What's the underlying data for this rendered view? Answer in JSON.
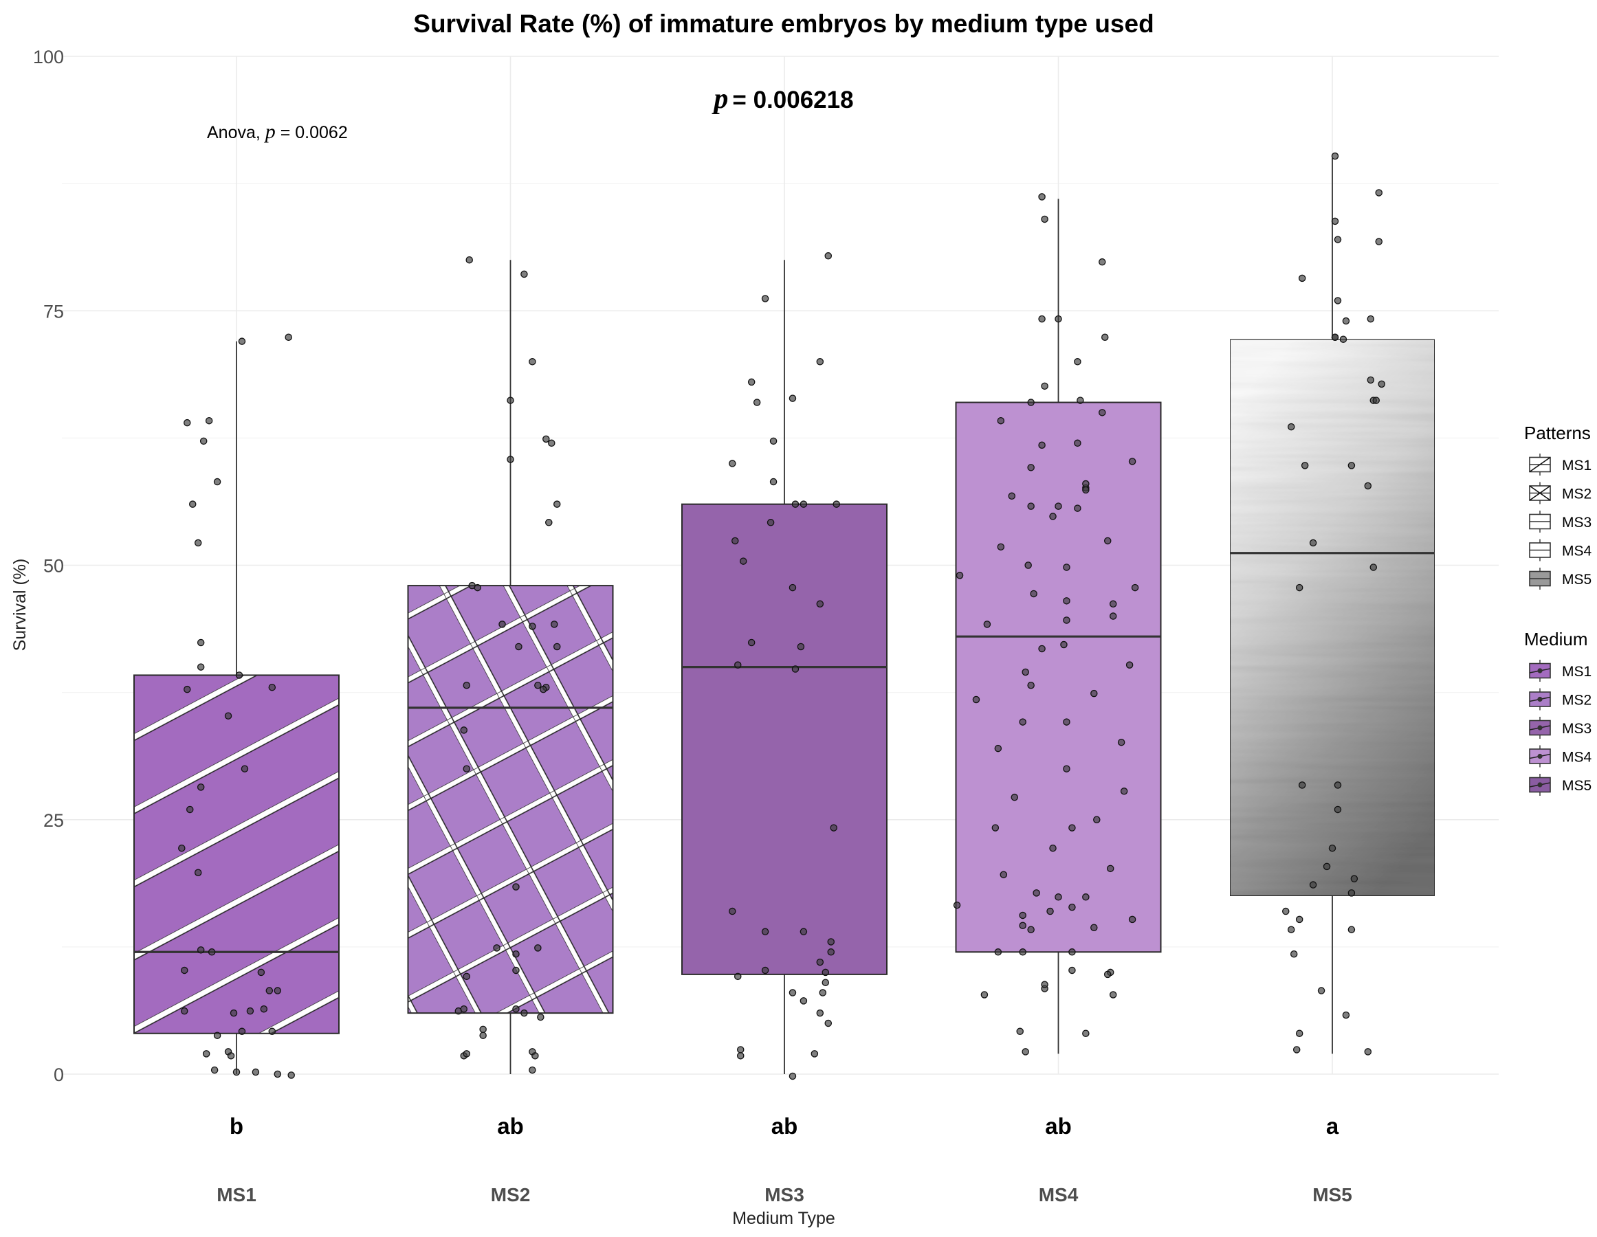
{
  "chart_data": {
    "type": "box",
    "title": "Survival Rate (%) of immature embryos by medium type used",
    "subtitle_prefix": "p",
    "subtitle_value": "= 0.006218",
    "annotation_prefix": "Anova, ",
    "annotation_italic": "p",
    "annotation_value": " = 0.0062",
    "xlabel": "Medium Type",
    "ylabel": "Survival (%)",
    "ylim": [
      0,
      100
    ],
    "yticks": [
      0,
      25,
      50,
      75,
      100
    ],
    "categories": [
      "MS1",
      "MS2",
      "MS3",
      "MS4",
      "MS5"
    ],
    "letters": [
      "b",
      "ab",
      "ab",
      "ab",
      "a"
    ],
    "boxes": [
      {
        "name": "MS1",
        "whisker_low": 0,
        "q1": 4,
        "median": 12,
        "q3": 39.2,
        "whisker_high": 72,
        "fill": "#a36bbf",
        "pattern": "stripe"
      },
      {
        "name": "MS2",
        "whisker_low": 0,
        "q1": 6,
        "median": 36,
        "q3": 48,
        "whisker_high": 80,
        "fill": "#ab7ec8",
        "pattern": "crosshatch"
      },
      {
        "name": "MS3",
        "whisker_low": 0,
        "q1": 9.8,
        "median": 40,
        "q3": 56,
        "whisker_high": 80,
        "fill": "#9564ab",
        "pattern": "none"
      },
      {
        "name": "MS4",
        "whisker_low": 2,
        "q1": 12,
        "median": 43,
        "q3": 66,
        "whisker_high": 86,
        "fill": "#bd91d1",
        "pattern": "none"
      },
      {
        "name": "MS5",
        "whisker_low": 2,
        "q1": 17.5,
        "median": 51.2,
        "q3": 72.2,
        "whisker_high": 90,
        "fill": "#9a9a9a",
        "pattern": "gradient"
      }
    ],
    "points": [
      [
        [
          -0.18,
          64
        ],
        [
          -0.12,
          62.2
        ],
        [
          -0.1,
          64.2
        ],
        [
          -0.16,
          56
        ],
        [
          -0.14,
          52.2
        ],
        [
          -0.07,
          58.2
        ],
        [
          0.02,
          72
        ],
        [
          0.19,
          72.4
        ],
        [
          -0.13,
          42.4
        ],
        [
          -0.13,
          40
        ],
        [
          0.01,
          39.2
        ],
        [
          -0.18,
          37.8
        ],
        [
          0.13,
          38
        ],
        [
          -0.03,
          35.2
        ],
        [
          0.03,
          30
        ],
        [
          -0.13,
          28.2
        ],
        [
          -0.17,
          26
        ],
        [
          -0.2,
          22.2
        ],
        [
          -0.14,
          19.8
        ],
        [
          -0.13,
          12.2
        ],
        [
          -0.09,
          12
        ],
        [
          -0.19,
          10.2
        ],
        [
          0.09,
          10
        ],
        [
          0.12,
          8.2
        ],
        [
          0.15,
          8.2
        ],
        [
          -0.19,
          6.2
        ],
        [
          -0.01,
          6
        ],
        [
          0.05,
          6.2
        ],
        [
          0.1,
          6.4
        ],
        [
          0.02,
          4.2
        ],
        [
          0.13,
          4.2
        ],
        [
          -0.07,
          3.8
        ],
        [
          -0.11,
          2
        ],
        [
          -0.03,
          2.2
        ],
        [
          -0.02,
          1.8
        ],
        [
          0.0,
          0.2
        ],
        [
          -0.08,
          0.4
        ],
        [
          0.07,
          0.2
        ],
        [
          0.15,
          0
        ],
        [
          0.2,
          -0.1
        ]
      ],
      [
        [
          -0.15,
          80
        ],
        [
          0.05,
          78.6
        ],
        [
          0.08,
          70
        ],
        [
          0.0,
          66.2
        ],
        [
          0.0,
          60.4
        ],
        [
          0.13,
          62.4
        ],
        [
          0.15,
          62
        ],
        [
          0.17,
          56
        ],
        [
          0.14,
          54.2
        ],
        [
          -0.14,
          48
        ],
        [
          -0.12,
          47.8
        ],
        [
          -0.03,
          44.2
        ],
        [
          0.08,
          44
        ],
        [
          0.16,
          44.2
        ],
        [
          0.17,
          42
        ],
        [
          0.03,
          42
        ],
        [
          -0.16,
          38.2
        ],
        [
          0.1,
          38.2
        ],
        [
          0.13,
          38
        ],
        [
          0.12,
          37.8
        ],
        [
          -0.17,
          33.8
        ],
        [
          -0.16,
          30
        ],
        [
          0.02,
          18.4
        ],
        [
          -0.05,
          12.4
        ],
        [
          0.02,
          11.8
        ],
        [
          0.1,
          12.4
        ],
        [
          0.02,
          10.2
        ],
        [
          -0.16,
          9.6
        ],
        [
          -0.19,
          6.2
        ],
        [
          -0.17,
          6.4
        ],
        [
          0.02,
          6.4
        ],
        [
          0.05,
          6
        ],
        [
          0.11,
          5.6
        ],
        [
          -0.1,
          4.4
        ],
        [
          -0.1,
          3.8
        ],
        [
          -0.17,
          1.8
        ],
        [
          -0.16,
          2
        ],
        [
          0.08,
          2.2
        ],
        [
          0.09,
          1.8
        ],
        [
          0.08,
          0.4
        ]
      ],
      [
        [
          -0.07,
          76.2
        ],
        [
          0.16,
          80.4
        ],
        [
          0.13,
          70
        ],
        [
          -0.12,
          68
        ],
        [
          -0.1,
          66
        ],
        [
          0.03,
          66.4
        ],
        [
          -0.04,
          62.2
        ],
        [
          -0.04,
          58.2
        ],
        [
          -0.19,
          60
        ],
        [
          -0.05,
          54.2
        ],
        [
          0.04,
          56
        ],
        [
          0.07,
          56
        ],
        [
          0.19,
          56
        ],
        [
          -0.18,
          52.4
        ],
        [
          -0.15,
          50.4
        ],
        [
          0.03,
          47.8
        ],
        [
          0.13,
          46.2
        ],
        [
          -0.17,
          40.2
        ],
        [
          -0.12,
          42.4
        ],
        [
          0.06,
          42
        ],
        [
          0.04,
          39.8
        ],
        [
          0.18,
          24.2
        ],
        [
          -0.19,
          16
        ],
        [
          -0.07,
          14
        ],
        [
          0.07,
          14
        ],
        [
          0.17,
          13
        ],
        [
          0.17,
          12
        ],
        [
          0.13,
          11
        ],
        [
          0.15,
          10
        ],
        [
          -0.07,
          10.2
        ],
        [
          -0.17,
          9.6
        ],
        [
          0.15,
          9
        ],
        [
          0.03,
          8
        ],
        [
          0.14,
          8
        ],
        [
          0.07,
          7.2
        ],
        [
          0.13,
          6
        ],
        [
          0.16,
          5
        ],
        [
          -0.16,
          2.4
        ],
        [
          0.11,
          2
        ],
        [
          -0.16,
          1.8
        ],
        [
          0.03,
          -0.2
        ]
      ],
      [
        [
          -0.06,
          86.2
        ],
        [
          -0.05,
          84
        ],
        [
          0.16,
          79.8
        ],
        [
          -0.06,
          74.2
        ],
        [
          0.0,
          74.2
        ],
        [
          0.17,
          72.4
        ],
        [
          0.07,
          70
        ],
        [
          -0.05,
          67.6
        ],
        [
          0.08,
          66.2
        ],
        [
          -0.1,
          66
        ],
        [
          -0.21,
          64.2
        ],
        [
          0.16,
          65
        ],
        [
          0.27,
          60.2
        ],
        [
          -0.06,
          61.8
        ],
        [
          0.07,
          62
        ],
        [
          -0.1,
          59.6
        ],
        [
          0.1,
          57.6
        ],
        [
          0.1,
          58
        ],
        [
          -0.1,
          55.8
        ],
        [
          0.0,
          55.8
        ],
        [
          0.07,
          55.6
        ],
        [
          0.28,
          47.8
        ],
        [
          0.1,
          57.4
        ],
        [
          0.18,
          52.4
        ],
        [
          -0.36,
          49
        ],
        [
          -0.17,
          56.8
        ],
        [
          -0.11,
          50
        ],
        [
          -0.21,
          51.8
        ],
        [
          -0.26,
          44.2
        ],
        [
          -0.02,
          54.8
        ],
        [
          0.03,
          49.8
        ],
        [
          -0.09,
          47.2
        ],
        [
          0.03,
          46.5
        ],
        [
          0.2,
          46.2
        ],
        [
          0.2,
          45
        ],
        [
          0.03,
          44.6
        ],
        [
          0.26,
          40.2
        ],
        [
          -0.06,
          41.8
        ],
        [
          0.02,
          42.2
        ],
        [
          -0.12,
          39.5
        ],
        [
          -0.1,
          38.2
        ],
        [
          -0.3,
          36.8
        ],
        [
          0.13,
          37.4
        ],
        [
          -0.13,
          34.6
        ],
        [
          0.03,
          34.6
        ],
        [
          -0.22,
          32
        ],
        [
          0.23,
          32.6
        ],
        [
          0.03,
          30
        ],
        [
          0.05,
          24.2
        ],
        [
          0.24,
          27.8
        ],
        [
          -0.16,
          27.2
        ],
        [
          -0.23,
          24.2
        ],
        [
          0.14,
          25
        ],
        [
          -0.02,
          22.2
        ],
        [
          0.19,
          20.2
        ],
        [
          -0.2,
          19.6
        ],
        [
          0.0,
          17.4
        ],
        [
          0.1,
          17.4
        ],
        [
          -0.08,
          17.8
        ],
        [
          -0.13,
          15.6
        ],
        [
          -0.13,
          14.6
        ],
        [
          -0.1,
          14.2
        ],
        [
          -0.03,
          16
        ],
        [
          0.05,
          16.4
        ],
        [
          0.13,
          14.4
        ],
        [
          0.27,
          15.2
        ],
        [
          -0.22,
          12
        ],
        [
          -0.13,
          12
        ],
        [
          0.05,
          12
        ],
        [
          0.19,
          10
        ],
        [
          0.18,
          9.8
        ],
        [
          -0.05,
          8.4
        ],
        [
          0.05,
          10.2
        ],
        [
          -0.27,
          7.8
        ],
        [
          0.2,
          7.8
        ],
        [
          -0.05,
          8.8
        ],
        [
          -0.14,
          4.2
        ],
        [
          0.1,
          4
        ],
        [
          -0.12,
          2.2
        ],
        [
          -0.37,
          16.6
        ]
      ],
      [
        [
          0.01,
          90.2
        ],
        [
          0.17,
          86.6
        ],
        [
          0.01,
          83.8
        ],
        [
          0.02,
          82
        ],
        [
          0.17,
          81.8
        ],
        [
          -0.11,
          78.2
        ],
        [
          0.02,
          76
        ],
        [
          0.05,
          74
        ],
        [
          0.14,
          74.2
        ],
        [
          0.01,
          72.4
        ],
        [
          0.04,
          72.2
        ],
        [
          0.01,
          72.4
        ],
        [
          0.14,
          68.2
        ],
        [
          0.15,
          66.2
        ],
        [
          0.18,
          67.8
        ],
        [
          0.16,
          66.2
        ],
        [
          -0.15,
          63.6
        ],
        [
          -0.1,
          59.8
        ],
        [
          0.07,
          59.8
        ],
        [
          0.13,
          57.8
        ],
        [
          -0.07,
          52.2
        ],
        [
          0.15,
          49.8
        ],
        [
          -0.12,
          47.8
        ],
        [
          -0.11,
          28.4
        ],
        [
          0.02,
          28.4
        ],
        [
          0.02,
          26
        ],
        [
          0.0,
          22.2
        ],
        [
          -0.07,
          18.6
        ],
        [
          -0.02,
          20.4
        ],
        [
          0.08,
          19.2
        ],
        [
          0.07,
          17.8
        ],
        [
          -0.17,
          16
        ],
        [
          -0.12,
          15.2
        ],
        [
          -0.15,
          14.2
        ],
        [
          0.07,
          14.2
        ],
        [
          -0.14,
          11.8
        ],
        [
          -0.04,
          8.2
        ],
        [
          -0.12,
          4
        ],
        [
          0.05,
          5.8
        ],
        [
          0.13,
          2.2
        ],
        [
          -0.13,
          2.4
        ]
      ]
    ],
    "legend": {
      "patterns_title": "Patterns",
      "medium_title": "Medium",
      "pattern_entries": [
        "MS1",
        "MS2",
        "MS3",
        "MS4",
        "MS5"
      ],
      "medium_entries": [
        "MS1",
        "MS2",
        "MS3",
        "MS4",
        "MS5"
      ]
    }
  }
}
